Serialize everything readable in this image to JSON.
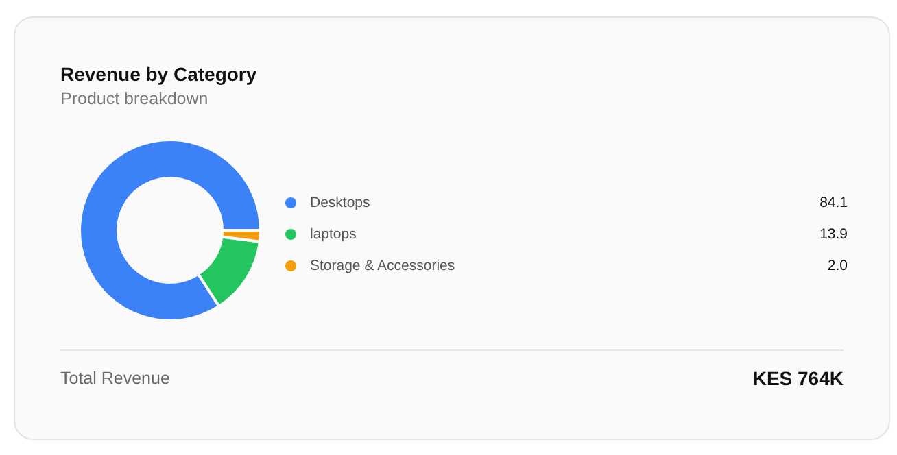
{
  "chart_data": {
    "type": "donut",
    "title": "Revenue by Category",
    "subtitle": "Product breakdown",
    "categories": [
      "Desktops",
      "laptops",
      "Storage & Accessories"
    ],
    "values": [
      84.1,
      13.9,
      2.0
    ],
    "colors": [
      "#3b82f6",
      "#22c55e",
      "#f59e0b"
    ],
    "legend": "right",
    "value_labels": [
      "84.1",
      "13.9",
      "2.0"
    ],
    "annotations": [
      "Total Revenue",
      "KES 764K"
    ]
  }
}
